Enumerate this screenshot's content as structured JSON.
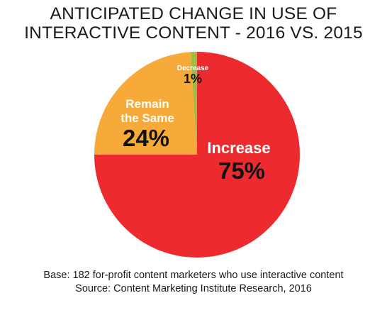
{
  "title_line1": "ANTICIPATED CHANGE IN USE OF",
  "title_line2": "INTERACTIVE CONTENT - 2016 VS. 2015",
  "footer_line1": "Base: 182 for-profit content marketers who use interactive content",
  "footer_line2": "Source: Content Marketing Institute Research, 2016",
  "chart_data": {
    "type": "pie",
    "title": "ANTICIPATED CHANGE IN USE OF INTERACTIVE CONTENT - 2016 VS. 2015",
    "slices": [
      {
        "label": "Increase",
        "value": 75,
        "value_label": "75%",
        "color": "#ed2b2f"
      },
      {
        "label": "Remain the Same",
        "value": 24,
        "value_label": "24%",
        "color": "#f7a93a"
      },
      {
        "label": "Decrease",
        "value": 1,
        "value_label": "1%",
        "color": "#9cbd3f"
      }
    ],
    "start": "12 o'clock",
    "direction": "clockwise",
    "legend": "none (labels on slices)"
  }
}
